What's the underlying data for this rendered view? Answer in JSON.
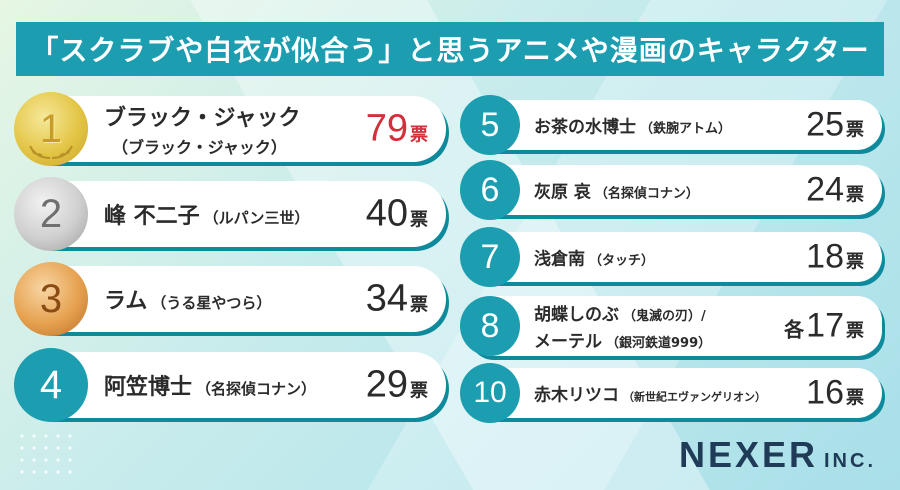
{
  "title": "「スクラブや白衣が似合う」と思うアニメや漫画のキャラクター",
  "colors": {
    "accent": "#1c9eb0",
    "highlight": "#d0313a"
  },
  "unit": "票",
  "left": [
    {
      "rank": "1",
      "name": "ブラック・ジャック",
      "sub": "",
      "sub2": "（ブラック・ジャック）",
      "votes": "79",
      "medal": "gold"
    },
    {
      "rank": "2",
      "name": "峰 不二子",
      "sub": "（ルパン三世）",
      "sub2": "",
      "votes": "40",
      "medal": "silver"
    },
    {
      "rank": "3",
      "name": "ラム",
      "sub": "（うる星やつら）",
      "sub2": "",
      "votes": "34",
      "medal": "bronze"
    },
    {
      "rank": "4",
      "name": "阿笠博士",
      "sub": "（名探偵コナン）",
      "sub2": "",
      "votes": "29",
      "medal": "teal"
    }
  ],
  "right": [
    {
      "rank": "5",
      "name": "お茶の水博士",
      "sub": "（鉄腕アトム）",
      "votes": "25"
    },
    {
      "rank": "6",
      "name": "灰原 哀",
      "sub": "（名探偵コナン）",
      "votes": "24"
    },
    {
      "rank": "7",
      "name": "浅倉南",
      "sub": "（タッチ）",
      "votes": "18"
    },
    {
      "rank": "8",
      "name": "胡蝶しのぶ",
      "sub": "（鬼滅の刃）/",
      "name2": "メーテル",
      "sub2": "（銀河鉄道999）",
      "prefix": "各",
      "votes": "17"
    },
    {
      "rank": "10",
      "name": "赤木リツコ",
      "sub": "（新世紀エヴァンゲリオン）",
      "votes": "16"
    }
  ],
  "logo": {
    "main": "NEXER",
    "suffix": "INC."
  }
}
